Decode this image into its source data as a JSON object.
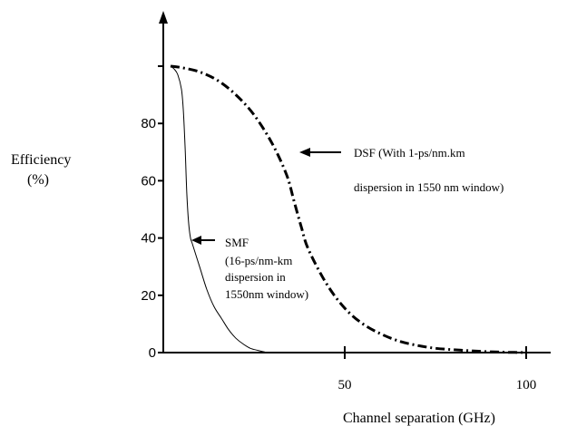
{
  "chart_data": {
    "type": "line",
    "xlabel": "Channel separation (GHz)",
    "ylabel_line1": "Efficiency",
    "ylabel_line2": "(%)",
    "xlim": [
      0,
      105
    ],
    "ylim": [
      0,
      100
    ],
    "x_ticks": [
      50,
      100
    ],
    "x_tick_labels": [
      "50",
      "100"
    ],
    "y_ticks": [
      0,
      20,
      40,
      60,
      80
    ],
    "y_tick_labels": [
      "0",
      "20",
      "40",
      "60",
      "80"
    ],
    "y_top_tick": 100,
    "grid": false,
    "legend": "none",
    "series": [
      {
        "key": "dsf",
        "style": "dash-dot",
        "x": [
          2,
          5,
          10,
          15,
          20,
          25,
          30,
          34,
          36,
          38,
          40,
          45,
          50,
          55,
          60,
          65,
          70,
          75,
          80,
          85,
          90,
          95,
          100
        ],
        "y": [
          100,
          99.5,
          98,
          95,
          90,
          83,
          73,
          62,
          53,
          44,
          36,
          24,
          15.5,
          10,
          6.5,
          4,
          2.5,
          1.5,
          1,
          0.6,
          0.3,
          0.1,
          0
        ]
      },
      {
        "key": "smf",
        "style": "solid",
        "x": [
          2,
          3,
          4,
          5,
          5.5,
          6,
          6.5,
          7,
          7.5,
          8,
          10,
          12,
          14,
          16,
          18,
          20,
          22,
          24,
          26,
          28,
          29
        ],
        "y": [
          100,
          99,
          97,
          92,
          85,
          72,
          55,
          45,
          40,
          38,
          30,
          22,
          16,
          12,
          8,
          5,
          3,
          1.5,
          0.8,
          0.2,
          0
        ]
      }
    ],
    "annotations": {
      "dsf_line1": "DSF (With 1-ps/nm.km",
      "dsf_line2": "dispersion in 1550 nm window)",
      "smf_line1": "SMF",
      "smf_line2": "(16-ps/nm-km",
      "smf_line3": "dispersion in",
      "smf_line4": "1550nm window)"
    }
  }
}
